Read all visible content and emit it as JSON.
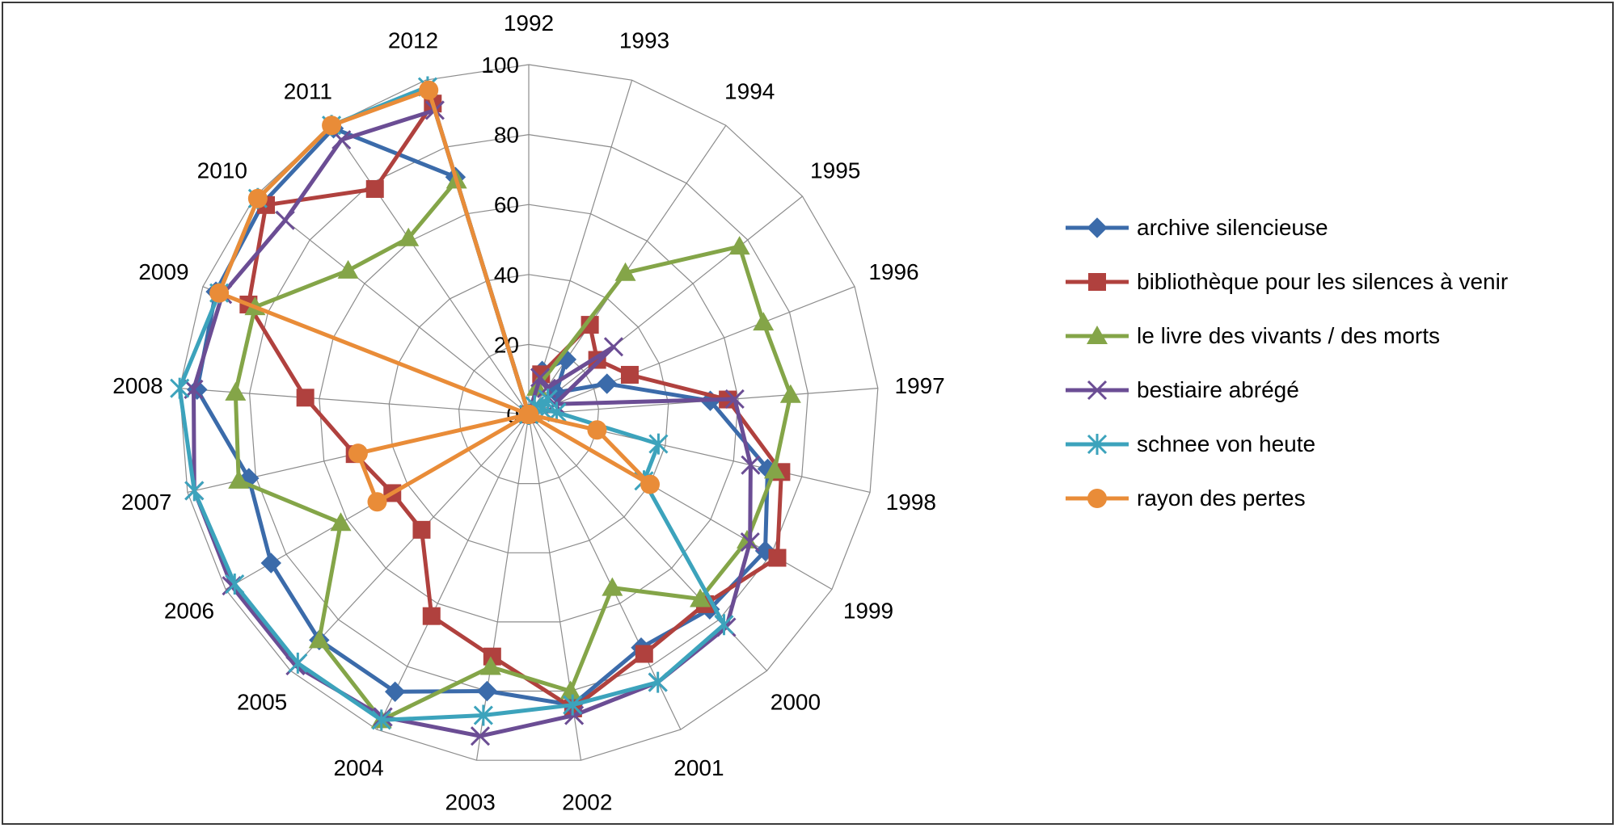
{
  "chart_data": {
    "type": "radar",
    "categories": [
      "1992",
      "1993",
      "1994",
      "1995",
      "1996",
      "1997",
      "1998",
      "1999",
      "2000",
      "2001",
      "2002",
      "2003",
      "2004",
      "2005",
      "2006",
      "2007",
      "2008",
      "2009",
      "2010",
      "2011",
      "2012"
    ],
    "rlim": [
      0,
      100
    ],
    "r_ticks": [
      0,
      20,
      40,
      60,
      80,
      100
    ],
    "grid": true,
    "legend_position": "right",
    "series": [
      {
        "name": "archive silencieuse",
        "color": "#3B6BAA",
        "marker": "diamond",
        "values": [
          0,
          13,
          19,
          10,
          24,
          52,
          70,
          78,
          76,
          74,
          84,
          80,
          88,
          88,
          85,
          82,
          95,
          96,
          97,
          99,
          71
        ]
      },
      {
        "name": "bibliothèque pour les silences à venir",
        "color": "#B0413E",
        "marker": "square",
        "values": [
          0,
          12,
          31,
          25,
          31,
          57,
          74,
          82,
          74,
          76,
          85,
          70,
          64,
          45,
          45,
          51,
          64,
          86,
          96,
          78,
          93
        ]
      },
      {
        "name": "le livre des vivants / des morts",
        "color": "#84A548",
        "marker": "triangle",
        "values": [
          0,
          8,
          49,
          77,
          72,
          75,
          72,
          72,
          72,
          55,
          80,
          73,
          97,
          88,
          62,
          85,
          84,
          84,
          66,
          61,
          70
        ]
      },
      {
        "name": "bestiaire abrégé",
        "color": "#6B4D94",
        "marker": "x",
        "values": [
          0,
          11,
          9,
          31,
          8,
          59,
          65,
          73,
          83,
          85,
          87,
          93,
          96,
          98,
          98,
          98,
          96,
          94,
          89,
          95,
          91
        ]
      },
      {
        "name": "schnee von heute",
        "color": "#3CA3BC",
        "marker": "asterisk",
        "values": [
          0,
          0,
          3,
          7,
          4,
          8,
          38,
          38,
          82,
          85,
          84,
          87,
          97,
          97,
          97,
          98,
          100,
          95,
          99,
          100,
          98
        ]
      },
      {
        "name": "rayon des pertes",
        "color": "#E98C38",
        "marker": "circle",
        "values": [
          0,
          0,
          0,
          0,
          0,
          0,
          20,
          40,
          0,
          0,
          0,
          0,
          0,
          0,
          50,
          50,
          0,
          95,
          99,
          100,
          97
        ]
      }
    ]
  }
}
